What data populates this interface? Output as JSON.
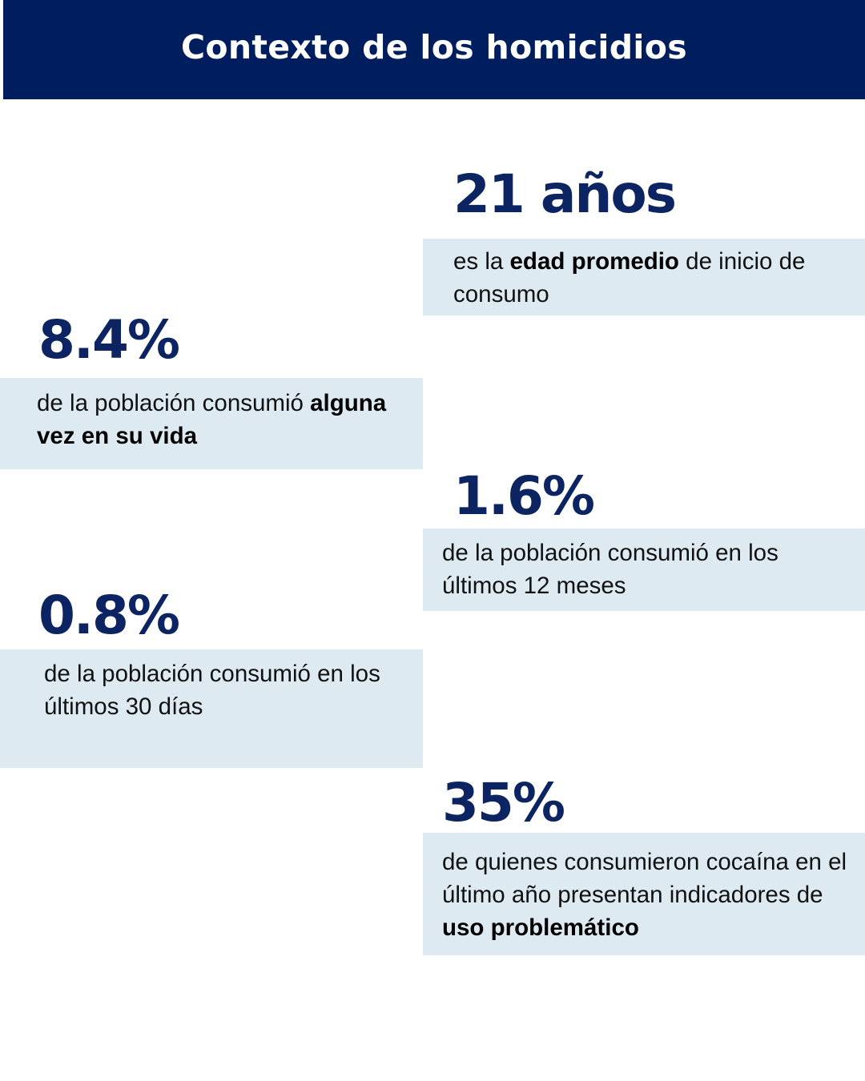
{
  "header": {
    "title": "Contexto de  los homicidios"
  },
  "stats": [
    {
      "value": "21 años",
      "parts": [
        {
          "text": "es la ",
          "bold": false
        },
        {
          "text": "edad promedio",
          "bold": true
        },
        {
          "text": " de inicio de consumo",
          "bold": false
        }
      ]
    },
    {
      "value": "8.4%",
      "parts": [
        {
          "text": "de la población consumió ",
          "bold": false
        },
        {
          "text": "alguna vez en su vida",
          "bold": true
        }
      ]
    },
    {
      "value": "1.6%",
      "parts": [
        {
          "text": "de la población consumió en los últimos 12 meses",
          "bold": false
        }
      ]
    },
    {
      "value": "0.8%",
      "parts": [
        {
          "text": "de la población consumió en los últimos 30 días",
          "bold": false
        }
      ]
    },
    {
      "value": "35%",
      "parts": [
        {
          "text": "de quienes consumieron cocaína en el último año presentan indicadores de ",
          "bold": false
        },
        {
          "text": "uso problemático",
          "bold": true
        }
      ]
    }
  ],
  "colors": {
    "header_bg": "#001e5e",
    "stat_value": "#0c2461",
    "box_bg": "#ddeaf2"
  }
}
